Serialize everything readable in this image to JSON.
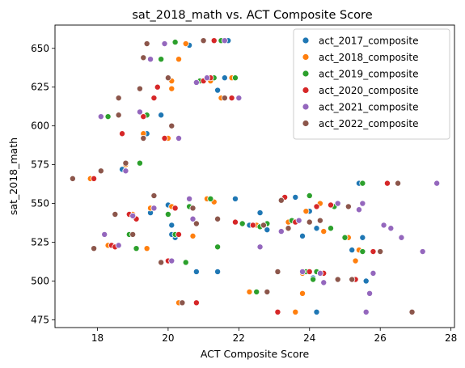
{
  "chart_data": {
    "type": "scatter",
    "title": "sat_2018_math vs. ACT Composite Score",
    "xlabel": "ACT Composite Score",
    "ylabel": "sat_2018_math",
    "xlim": [
      16.8,
      28.1
    ],
    "ylim": [
      470,
      665
    ],
    "xticks": [
      18,
      20,
      22,
      24,
      26,
      28
    ],
    "yticks": [
      475,
      500,
      525,
      550,
      575,
      600,
      625,
      650
    ],
    "grid": false,
    "legend_position": "top-right",
    "series": [
      {
        "name": "act_2017_composite",
        "color": "#1f77b4",
        "points": [
          [
            18.7,
            572
          ],
          [
            18.1,
            606
          ],
          [
            18.6,
            607
          ],
          [
            19.4,
            595
          ],
          [
            19.5,
            544
          ],
          [
            19.8,
            607
          ],
          [
            20.0,
            549
          ],
          [
            20.1,
            536
          ],
          [
            20.2,
            528
          ],
          [
            20.3,
            592
          ],
          [
            20.6,
            652
          ],
          [
            20.8,
            506
          ],
          [
            21.0,
            629
          ],
          [
            21.4,
            506
          ],
          [
            21.4,
            623
          ],
          [
            21.8,
            631
          ],
          [
            21.9,
            553
          ],
          [
            21.8,
            618
          ],
          [
            22.3,
            536
          ],
          [
            22.6,
            544
          ],
          [
            22.8,
            533
          ],
          [
            23.6,
            554
          ],
          [
            23.8,
            529
          ],
          [
            24.0,
            545
          ],
          [
            24.1,
            502
          ],
          [
            24.2,
            480
          ],
          [
            24.2,
            534
          ],
          [
            25.2,
            520
          ],
          [
            25.4,
            563
          ],
          [
            25.5,
            528
          ],
          [
            25.5,
            519
          ],
          [
            25.6,
            500
          ],
          [
            20.1,
            530
          ],
          [
            21.7,
            655
          ],
          [
            21.6,
            631
          ]
        ]
      },
      {
        "name": "act_2018_composite",
        "color": "#ff7f0e",
        "points": [
          [
            17.8,
            566
          ],
          [
            18.3,
            523
          ],
          [
            18.8,
            575
          ],
          [
            19.0,
            543
          ],
          [
            19.3,
            595
          ],
          [
            19.4,
            521
          ],
          [
            20.0,
            592
          ],
          [
            20.1,
            629
          ],
          [
            20.1,
            548
          ],
          [
            20.3,
            486
          ],
          [
            20.3,
            643
          ],
          [
            20.5,
            653
          ],
          [
            20.7,
            529
          ],
          [
            21.2,
            629
          ],
          [
            21.1,
            553
          ],
          [
            21.5,
            618
          ],
          [
            21.8,
            631
          ],
          [
            22.3,
            493
          ],
          [
            22.5,
            536
          ],
          [
            22.8,
            537
          ],
          [
            23.4,
            538
          ],
          [
            23.6,
            480
          ],
          [
            23.8,
            492
          ],
          [
            23.9,
            545
          ],
          [
            23.8,
            505
          ],
          [
            24.3,
            550
          ],
          [
            24.4,
            532
          ],
          [
            25.1,
            528
          ],
          [
            25.3,
            513
          ],
          [
            25.4,
            520
          ],
          [
            20.1,
            624
          ],
          [
            19.5,
            547
          ],
          [
            21.3,
            551
          ]
        ]
      },
      {
        "name": "act_2019_composite",
        "color": "#2ca02c",
        "points": [
          [
            18.3,
            606
          ],
          [
            18.9,
            530
          ],
          [
            19.1,
            521
          ],
          [
            19.2,
            576
          ],
          [
            19.4,
            607
          ],
          [
            19.8,
            643
          ],
          [
            20.0,
            543
          ],
          [
            20.2,
            530
          ],
          [
            20.5,
            512
          ],
          [
            20.6,
            548
          ],
          [
            20.9,
            629
          ],
          [
            21.2,
            553
          ],
          [
            21.4,
            522
          ],
          [
            21.5,
            655
          ],
          [
            21.9,
            631
          ],
          [
            22.1,
            537
          ],
          [
            22.5,
            493
          ],
          [
            22.6,
            535
          ],
          [
            22.8,
            537
          ],
          [
            23.5,
            539
          ],
          [
            24.0,
            555
          ],
          [
            23.9,
            506
          ],
          [
            24.1,
            501
          ],
          [
            24.2,
            506
          ],
          [
            24.6,
            534
          ],
          [
            24.7,
            548
          ],
          [
            25.0,
            528
          ],
          [
            25.5,
            563
          ],
          [
            25.5,
            519
          ],
          [
            19.1,
            540
          ],
          [
            20.2,
            654
          ],
          [
            21.3,
            631
          ]
        ]
      },
      {
        "name": "act_2020_composite",
        "color": "#d62728",
        "points": [
          [
            17.9,
            566
          ],
          [
            18.4,
            523
          ],
          [
            18.7,
            595
          ],
          [
            18.9,
            543
          ],
          [
            19.1,
            540
          ],
          [
            19.3,
            606
          ],
          [
            19.7,
            625
          ],
          [
            19.9,
            592
          ],
          [
            20.2,
            547
          ],
          [
            20.3,
            530
          ],
          [
            20.8,
            486
          ],
          [
            21.0,
            629
          ],
          [
            21.2,
            631
          ],
          [
            21.3,
            655
          ],
          [
            21.8,
            618
          ],
          [
            21.9,
            538
          ],
          [
            22.4,
            536
          ],
          [
            23.1,
            480
          ],
          [
            23.3,
            554
          ],
          [
            23.6,
            538
          ],
          [
            24.0,
            506
          ],
          [
            24.2,
            548
          ],
          [
            24.4,
            505
          ],
          [
            24.6,
            549
          ],
          [
            24.8,
            501
          ],
          [
            25.3,
            501
          ],
          [
            25.8,
            519
          ],
          [
            26.2,
            563
          ],
          [
            19.6,
            618
          ],
          [
            18.5,
            522
          ],
          [
            20.0,
            513
          ]
        ]
      },
      {
        "name": "act_2021_composite",
        "color": "#9467bd",
        "points": [
          [
            18.1,
            606
          ],
          [
            18.2,
            530
          ],
          [
            18.6,
            523
          ],
          [
            18.8,
            571
          ],
          [
            19.0,
            542
          ],
          [
            19.2,
            609
          ],
          [
            19.6,
            547
          ],
          [
            19.9,
            653
          ],
          [
            20.1,
            513
          ],
          [
            20.3,
            592
          ],
          [
            20.6,
            553
          ],
          [
            20.7,
            540
          ],
          [
            20.8,
            628
          ],
          [
            21.1,
            631
          ],
          [
            21.6,
            655
          ],
          [
            22.0,
            618
          ],
          [
            22.6,
            522
          ],
          [
            23.2,
            532
          ],
          [
            23.7,
            539
          ],
          [
            23.8,
            506
          ],
          [
            24.3,
            505
          ],
          [
            24.4,
            499
          ],
          [
            24.8,
            550
          ],
          [
            25.4,
            546
          ],
          [
            25.5,
            550
          ],
          [
            25.6,
            480
          ],
          [
            25.8,
            505
          ],
          [
            25.7,
            492
          ],
          [
            26.1,
            536
          ],
          [
            26.3,
            534
          ],
          [
            26.6,
            528
          ],
          [
            27.2,
            519
          ],
          [
            27.6,
            563
          ],
          [
            19.5,
            643
          ]
        ]
      },
      {
        "name": "act_2022_composite",
        "color": "#8c564b",
        "points": [
          [
            17.3,
            566
          ],
          [
            17.9,
            521
          ],
          [
            18.1,
            571
          ],
          [
            18.5,
            543
          ],
          [
            18.6,
            618
          ],
          [
            18.8,
            576
          ],
          [
            19.0,
            530
          ],
          [
            19.2,
            624
          ],
          [
            19.3,
            592
          ],
          [
            19.4,
            653
          ],
          [
            19.6,
            555
          ],
          [
            19.8,
            512
          ],
          [
            20.0,
            631
          ],
          [
            20.1,
            600
          ],
          [
            20.4,
            486
          ],
          [
            20.7,
            547
          ],
          [
            20.8,
            537
          ],
          [
            21.0,
            655
          ],
          [
            21.4,
            540
          ],
          [
            21.6,
            618
          ],
          [
            22.7,
            536
          ],
          [
            22.8,
            493
          ],
          [
            23.1,
            506
          ],
          [
            23.2,
            552
          ],
          [
            23.4,
            534
          ],
          [
            24.0,
            538
          ],
          [
            24.3,
            539
          ],
          [
            24.8,
            501
          ],
          [
            25.1,
            548
          ],
          [
            25.2,
            501
          ],
          [
            26.0,
            519
          ],
          [
            26.5,
            563
          ],
          [
            26.9,
            480
          ],
          [
            18.6,
            607
          ],
          [
            19.3,
            644
          ]
        ]
      }
    ]
  }
}
